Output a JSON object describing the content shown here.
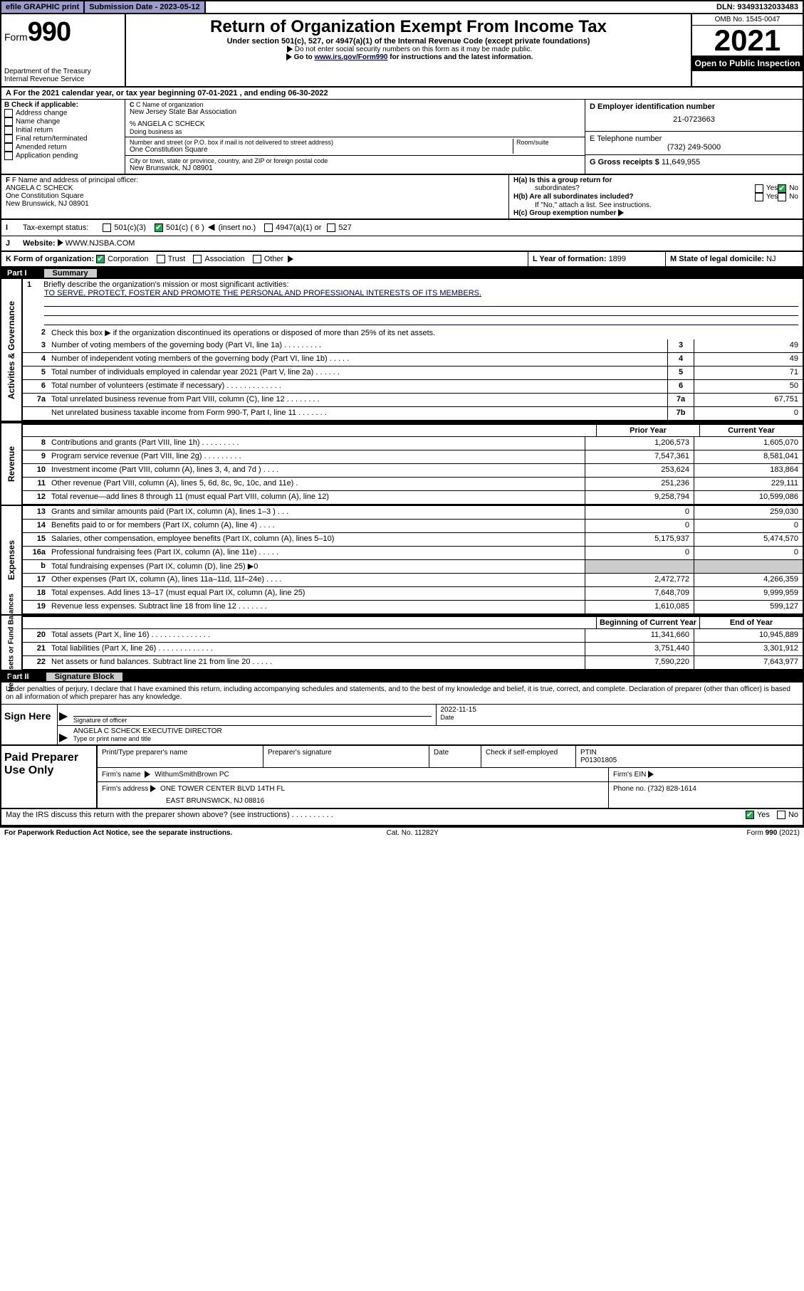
{
  "topbar": {
    "efile": "efile GRAPHIC print",
    "submission_label": "Submission Date - ",
    "submission_date": "2023-05-12",
    "dln_label": "DLN: ",
    "dln": "93493132033483"
  },
  "header": {
    "form_prefix": "Form",
    "form_num": "990",
    "dept": "Department of the Treasury",
    "irs": "Internal Revenue Service",
    "title": "Return of Organization Exempt From Income Tax",
    "sub1": "Under section 501(c), 527, or 4947(a)(1) of the Internal Revenue Code (except private foundations)",
    "sub2": "Do not enter social security numbers on this form as it may be made public.",
    "sub3_pre": "Go to ",
    "sub3_link": "www.irs.gov/Form990",
    "sub3_post": " for instructions and the latest information.",
    "omb": "OMB No. 1545-0047",
    "year": "2021",
    "inspect": "Open to Public Inspection"
  },
  "row_a": "For the 2021 calendar year, or tax year beginning 07-01-2021  , and ending 06-30-2022",
  "section_b": {
    "heading": "B Check if applicable:",
    "items": [
      "Address change",
      "Name change",
      "Initial return",
      "Final return/terminated",
      "Amended return",
      "Application pending"
    ]
  },
  "section_c": {
    "c_label": "C Name of organization",
    "org_name": "New Jersey State Bar Association",
    "care_of": "% ANGELA C SCHECK",
    "dba_label": "Doing business as",
    "addr_label": "Number and street (or P.O. box if mail is not delivered to street address)",
    "room_label": "Room/suite",
    "addr": "One Constitution Square",
    "city_label": "City or town, state or province, country, and ZIP or foreign postal code",
    "city": "New Brunswick, NJ  08901"
  },
  "section_de": {
    "d_label": "D Employer identification number",
    "ein": "21-0723663",
    "e_label": "E Telephone number",
    "phone": "(732) 249-5000",
    "g_label": "G Gross receipts $ ",
    "gross": "11,649,955"
  },
  "section_f": {
    "label": "F Name and address of principal officer:",
    "name": "ANGELA C SCHECK",
    "addr1": "One Constitution Square",
    "addr2": "New Brunswick, NJ  08901"
  },
  "section_h": {
    "ha": "H(a)  Is this a group return for",
    "ha2": "subordinates?",
    "hb": "H(b)  Are all subordinates included?",
    "note": "If \"No,\" attach a list. See instructions.",
    "hc": "H(c)  Group exemption number",
    "yes": "Yes",
    "no": "No"
  },
  "row_i": {
    "label": "Tax-exempt status:",
    "opts": [
      "501(c)(3)",
      "501(c) ( 6 )",
      "(insert no.)",
      "4947(a)(1) or",
      "527"
    ]
  },
  "row_j": {
    "label": "Website:",
    "value": "WWW.NJSBA.COM"
  },
  "row_k": {
    "k_label": "K Form of organization:",
    "opts": [
      "Corporation",
      "Trust",
      "Association",
      "Other"
    ],
    "l_label": "L Year of formation: ",
    "l_val": "1899",
    "m_label": "M State of legal domicile: ",
    "m_val": "NJ"
  },
  "part1": {
    "num": "Part I",
    "title": "Summary"
  },
  "mission": {
    "q": "Briefly describe the organization's mission or most significant activities:",
    "text": "TO SERVE, PROTECT, FOSTER AND PROMOTE THE PERSONAL AND PROFESSIONAL INTERESTS OF ITS MEMBERS."
  },
  "line2": "Check this box ▶        if the organization discontinued its operations or disposed of more than 25% of its net assets.",
  "governance_lines": [
    {
      "n": "3",
      "d": "Number of voting members of the governing body (Part VI, line 1a)   .    .    .    .    .    .    .    .    .",
      "box": "3",
      "v": "49"
    },
    {
      "n": "4",
      "d": "Number of independent voting members of the governing body (Part VI, line 1b)   .    .    .    .    .",
      "box": "4",
      "v": "49"
    },
    {
      "n": "5",
      "d": "Total number of individuals employed in calendar year 2021 (Part V, line 2a)   .    .    .    .    .    .",
      "box": "5",
      "v": "71"
    },
    {
      "n": "6",
      "d": "Total number of volunteers (estimate if necessary)  .    .    .    .    .    .    .    .    .    .    .    .    .",
      "box": "6",
      "v": "50"
    },
    {
      "n": "7a",
      "d": "Total unrelated business revenue from Part VIII, column (C), line 12  .    .    .    .    .    .    .    .",
      "box": "7a",
      "v": "67,751"
    },
    {
      "n": "",
      "d": "Net unrelated business taxable income from Form 990-T, Part I, line 11  .    .    .    .    .    .    .",
      "box": "7b",
      "v": "0"
    }
  ],
  "col_header_prior": "Prior Year",
  "col_header_curr": "Current Year",
  "revenue_lines": [
    {
      "n": "8",
      "d": "Contributions and grants (Part VIII, line 1h)   .    .    .    .    .    .    .    .    .",
      "p": "1,206,573",
      "c": "1,605,070"
    },
    {
      "n": "9",
      "d": "Program service revenue (Part VIII, line 2g)   .    .    .    .    .    .    .    .    .",
      "p": "7,547,361",
      "c": "8,581,041"
    },
    {
      "n": "10",
      "d": "Investment income (Part VIII, column (A), lines 3, 4, and 7d )   .    .    .    .",
      "p": "253,624",
      "c": "183,864"
    },
    {
      "n": "11",
      "d": "Other revenue (Part VIII, column (A), lines 5, 6d, 8c, 9c, 10c, and 11e)   .",
      "p": "251,236",
      "c": "229,111"
    },
    {
      "n": "12",
      "d": "Total revenue—add lines 8 through 11 (must equal Part VIII, column (A), line 12)",
      "p": "9,258,794",
      "c": "10,599,086"
    }
  ],
  "expense_lines": [
    {
      "n": "13",
      "d": "Grants and similar amounts paid (Part IX, column (A), lines 1–3 )  .    .    .",
      "p": "0",
      "c": "259,030"
    },
    {
      "n": "14",
      "d": "Benefits paid to or for members (Part IX, column (A), line 4)   .    .    .    .",
      "p": "0",
      "c": "0"
    },
    {
      "n": "15",
      "d": "Salaries, other compensation, employee benefits (Part IX, column (A), lines 5–10)",
      "p": "5,175,937",
      "c": "5,474,570"
    },
    {
      "n": "16a",
      "d": "Professional fundraising fees (Part IX, column (A), line 11e)  .    .    .    .    .",
      "p": "0",
      "c": "0"
    },
    {
      "n": "b",
      "d": "Total fundraising expenses (Part IX, column (D), line 25) ▶0",
      "shade": true
    },
    {
      "n": "17",
      "d": "Other expenses (Part IX, column (A), lines 11a–11d, 11f–24e)   .    .    .    .",
      "p": "2,472,772",
      "c": "4,266,359"
    },
    {
      "n": "18",
      "d": "Total expenses. Add lines 13–17 (must equal Part IX, column (A), line 25)",
      "p": "7,648,709",
      "c": "9,999,959"
    },
    {
      "n": "19",
      "d": "Revenue less expenses. Subtract line 18 from line 12  .    .    .    .    .    .    .",
      "p": "1,610,085",
      "c": "599,127"
    }
  ],
  "netassets_header_b": "Beginning of Current Year",
  "netassets_header_e": "End of Year",
  "netassets_lines": [
    {
      "n": "20",
      "d": "Total assets (Part X, line 16)  .    .    .    .    .    .    .    .    .    .    .    .    .    .",
      "p": "11,341,660",
      "c": "10,945,889"
    },
    {
      "n": "21",
      "d": "Total liabilities (Part X, line 26)  .    .    .    .    .    .    .    .    .    .    .    .    .",
      "p": "3,751,440",
      "c": "3,301,912"
    },
    {
      "n": "22",
      "d": "Net assets or fund balances. Subtract line 21 from line 20  .    .    .    .    .",
      "p": "7,590,220",
      "c": "7,643,977"
    }
  ],
  "part2": {
    "num": "Part II",
    "title": "Signature Block"
  },
  "sig": {
    "declaration": "Under penalties of perjury, I declare that I have examined this return, including accompanying schedules and statements, and to the best of my knowledge and belief, it is true, correct, and complete. Declaration of preparer (other than officer) is based on all information of which preparer has any knowledge.",
    "sign_here": "Sign Here",
    "sig_officer": "Signature of officer",
    "date_label": "Date",
    "date": "2022-11-15",
    "name_title": "ANGELA C SCHECK  EXECUTIVE DIRECTOR",
    "name_title_label": "Type or print name and title"
  },
  "paid": {
    "label": "Paid Preparer Use Only",
    "h1": "Print/Type preparer's name",
    "h2": "Preparer's signature",
    "h3": "Date",
    "h4_check": "Check         if self-employed",
    "h5_ptin_label": "PTIN",
    "ptin": "P01301805",
    "firm_name_label": "Firm's name    ",
    "firm_name": "WithumSmithBrown PC",
    "firm_ein_label": "Firm's EIN",
    "firm_addr_label": "Firm's address",
    "firm_addr1": "ONE TOWER CENTER BLVD 14TH FL",
    "firm_addr2": "EAST BRUNSWICK, NJ  08816",
    "phone_label": "Phone no. ",
    "phone": "(732) 828-1614"
  },
  "footer": {
    "discuss": "May the IRS discuss this return with the preparer shown above? (see instructions)  .    .    .    .    .    .    .    .    .    .",
    "yes": "Yes",
    "no": "No",
    "paperwork": "For Paperwork Reduction Act Notice, see the separate instructions.",
    "cat": "Cat. No. 11282Y",
    "form": "Form 990 (2021)"
  },
  "sidebars": {
    "gov": "Activities & Governance",
    "rev": "Revenue",
    "exp": "Expenses",
    "net": "Net Assets or Fund Balances"
  }
}
